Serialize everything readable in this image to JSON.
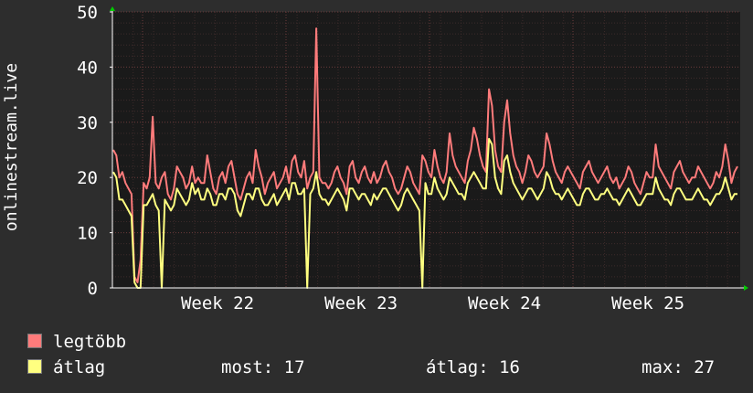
{
  "chart_data": {
    "type": "line",
    "ylabel": "onlinestream.live",
    "ylim": [
      0,
      50
    ],
    "yticks": [
      0,
      10,
      20,
      30,
      40,
      50
    ],
    "x_tick_labels": [
      "Week 22",
      "Week 23",
      "Week 24",
      "Week 25"
    ],
    "grid": true,
    "colors": {
      "background": "#2d2d2d",
      "plot_bg": "#1a1a1a",
      "grid_major": "#6a3a3a",
      "grid_minor": "#3c2a2a",
      "axis": "#ffffff",
      "arrow": "#00cc00"
    },
    "series": [
      {
        "name": "legtöbb",
        "color": "#ff7b7b",
        "values": [
          25,
          24,
          20,
          21,
          19,
          18,
          17,
          2,
          1,
          5,
          19,
          18,
          20,
          31,
          19,
          18,
          20,
          21,
          17,
          16,
          18,
          22,
          21,
          20,
          18,
          19,
          22,
          19,
          20,
          19,
          19,
          24,
          21,
          18,
          17,
          20,
          21,
          19,
          22,
          23,
          20,
          17,
          16,
          18,
          20,
          21,
          19,
          25,
          22,
          20,
          17,
          19,
          20,
          21,
          18,
          19,
          20,
          22,
          19,
          23,
          24,
          21,
          20,
          23,
          18,
          20,
          21,
          47,
          20,
          19,
          19,
          18,
          19,
          21,
          22,
          20,
          19,
          17,
          22,
          23,
          20,
          19,
          21,
          22,
          20,
          19,
          21,
          19,
          20,
          22,
          23,
          21,
          20,
          18,
          17,
          18,
          20,
          22,
          21,
          19,
          18,
          17,
          24,
          23,
          21,
          20,
          25,
          22,
          20,
          19,
          21,
          28,
          24,
          22,
          21,
          20,
          19,
          23,
          25,
          29,
          27,
          24,
          22,
          21,
          36,
          33,
          25,
          22,
          21,
          30,
          34,
          28,
          24,
          22,
          21,
          19,
          21,
          24,
          23,
          21,
          20,
          21,
          22,
          28,
          26,
          23,
          21,
          20,
          19,
          21,
          22,
          21,
          20,
          19,
          18,
          21,
          22,
          23,
          21,
          20,
          19,
          20,
          21,
          22,
          20,
          19,
          20,
          18,
          19,
          20,
          22,
          21,
          19,
          18,
          17,
          19,
          21,
          20,
          20,
          26,
          22,
          21,
          20,
          19,
          18,
          21,
          22,
          23,
          21,
          20,
          19,
          20,
          20,
          22,
          21,
          20,
          19,
          18,
          19,
          21,
          20,
          22,
          26,
          23,
          19,
          21,
          22
        ]
      },
      {
        "name": "átlag",
        "color": "#ffff80",
        "values": [
          21,
          20,
          16,
          16,
          15,
          14,
          13,
          1,
          0,
          0,
          15,
          15,
          16,
          17,
          15,
          14,
          0,
          16,
          15,
          14,
          15,
          18,
          17,
          16,
          15,
          16,
          19,
          17,
          18,
          16,
          16,
          18,
          17,
          15,
          15,
          17,
          17,
          16,
          18,
          18,
          17,
          14,
          13,
          15,
          17,
          17,
          16,
          18,
          18,
          16,
          15,
          15,
          16,
          17,
          15,
          16,
          17,
          18,
          16,
          19,
          19,
          17,
          17,
          18,
          0,
          17,
          18,
          21,
          17,
          16,
          16,
          15,
          16,
          17,
          18,
          17,
          16,
          14,
          18,
          18,
          17,
          16,
          17,
          17,
          16,
          15,
          17,
          16,
          17,
          18,
          18,
          17,
          16,
          15,
          14,
          15,
          17,
          18,
          17,
          16,
          15,
          14,
          0,
          19,
          17,
          17,
          20,
          18,
          17,
          16,
          17,
          20,
          19,
          18,
          17,
          17,
          16,
          19,
          20,
          21,
          20,
          19,
          18,
          18,
          27,
          26,
          20,
          18,
          17,
          23,
          24,
          21,
          19,
          18,
          17,
          16,
          17,
          18,
          18,
          17,
          16,
          17,
          18,
          21,
          20,
          18,
          17,
          17,
          16,
          17,
          18,
          17,
          16,
          15,
          15,
          17,
          18,
          18,
          17,
          16,
          16,
          17,
          17,
          18,
          17,
          16,
          16,
          15,
          16,
          17,
          18,
          17,
          16,
          15,
          15,
          16,
          17,
          17,
          17,
          20,
          18,
          17,
          16,
          16,
          15,
          17,
          18,
          18,
          17,
          16,
          16,
          16,
          17,
          18,
          17,
          16,
          16,
          15,
          16,
          17,
          17,
          18,
          20,
          18,
          16,
          17,
          17
        ]
      }
    ],
    "stats": {
      "most_label": "most:",
      "most_value": "17",
      "avg_label": "átlag:",
      "avg_value": "16",
      "max_label": "max:",
      "max_value": "27"
    }
  }
}
